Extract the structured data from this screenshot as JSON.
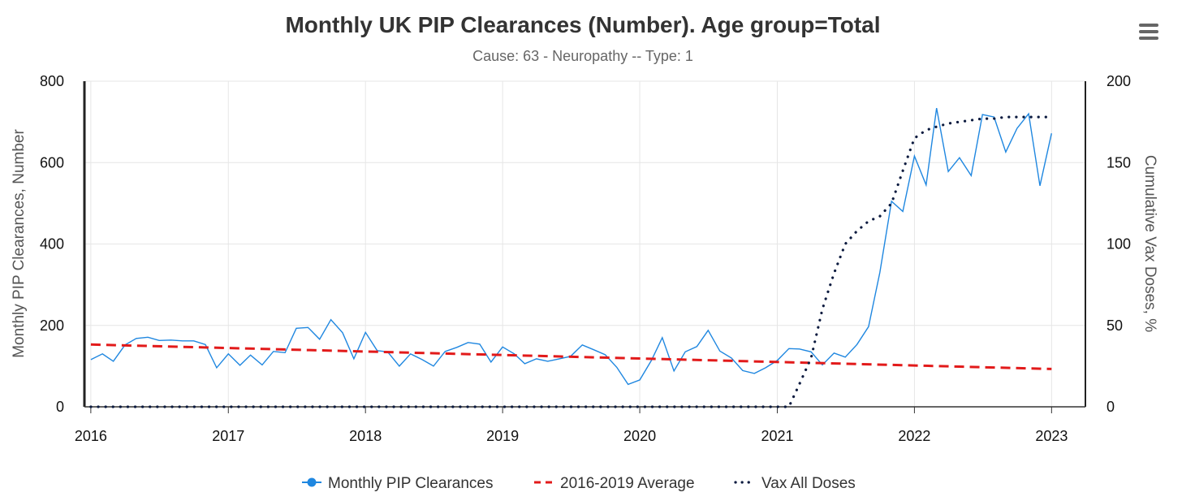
{
  "chart_data": {
    "type": "line",
    "title": "Monthly UK PIP Clearances (Number). Age group=Total",
    "subtitle": "Cause: 63 - Neuropathy -- Type: 1",
    "ylabel": "Monthly PIP Clearances, Number",
    "y2label": "Cumulative Vax Doses, %",
    "xlabel": "",
    "ylim": [
      0,
      800
    ],
    "y2lim": [
      0,
      200
    ],
    "xlim": [
      "2015-12-15",
      "2023-04-01"
    ],
    "x_ticks": [
      "2016",
      "2017",
      "2018",
      "2019",
      "2020",
      "2021",
      "2022",
      "2023"
    ],
    "y_ticks": [
      "0",
      "200",
      "400",
      "600",
      "800"
    ],
    "y2_ticks": [
      "0",
      "50",
      "100",
      "150",
      "200"
    ],
    "grid": true,
    "legend_position": "bottom-center",
    "series": [
      {
        "name": "Monthly PIP Clearances",
        "axis": "left",
        "style": "solid-markers",
        "color": "#1f87e0",
        "x": [
          "2016-01",
          "2016-02",
          "2016-03",
          "2016-04",
          "2016-05",
          "2016-06",
          "2016-07",
          "2016-08",
          "2016-09",
          "2016-10",
          "2016-11",
          "2016-12",
          "2017-01",
          "2017-02",
          "2017-03",
          "2017-04",
          "2017-05",
          "2017-06",
          "2017-07",
          "2017-08",
          "2017-09",
          "2017-10",
          "2017-11",
          "2017-12",
          "2018-01",
          "2018-02",
          "2018-03",
          "2018-04",
          "2018-05",
          "2018-06",
          "2018-07",
          "2018-08",
          "2018-09",
          "2018-10",
          "2018-11",
          "2018-12",
          "2019-01",
          "2019-02",
          "2019-03",
          "2019-04",
          "2019-05",
          "2019-06",
          "2019-07",
          "2019-08",
          "2019-09",
          "2019-10",
          "2019-11",
          "2019-12",
          "2020-01",
          "2020-02",
          "2020-03",
          "2020-04",
          "2020-05",
          "2020-06",
          "2020-07",
          "2020-08",
          "2020-09",
          "2020-10",
          "2020-11",
          "2020-12",
          "2021-01",
          "2021-02",
          "2021-03",
          "2021-04",
          "2021-05",
          "2021-06",
          "2021-07",
          "2021-08",
          "2021-09",
          "2021-10",
          "2021-11",
          "2021-12",
          "2022-01",
          "2022-02",
          "2022-03",
          "2022-04",
          "2022-05",
          "2022-06",
          "2022-07",
          "2022-08",
          "2022-09",
          "2022-10",
          "2022-11",
          "2022-12",
          "2023-01"
        ],
        "values": [
          116,
          130,
          112,
          152,
          168,
          171,
          163,
          164,
          162,
          162,
          153,
          96,
          130,
          102,
          127,
          103,
          136,
          133,
          193,
          195,
          166,
          214,
          182,
          118,
          183,
          138,
          135,
          100,
          130,
          116,
          100,
          136,
          146,
          158,
          154,
          110,
          147,
          130,
          106,
          118,
          112,
          118,
          124,
          152,
          140,
          128,
          97,
          55,
          66,
          114,
          170,
          88,
          135,
          148,
          188,
          137,
          120,
          89,
          82,
          96,
          114,
          143,
          142,
          135,
          103,
          132,
          122,
          153,
          197,
          330,
          505,
          480,
          616,
          545,
          734,
          578,
          612,
          568,
          718,
          712,
          626,
          684,
          720,
          543,
          672
        ]
      },
      {
        "name": "2016-2019 Average",
        "axis": "left",
        "style": "dashed",
        "color": "#e21a1a",
        "x": [
          "2016-01",
          "2023-01"
        ],
        "values": [
          153,
          93
        ]
      },
      {
        "name": "Vax All Doses",
        "axis": "right",
        "style": "dotted",
        "color": "#0b1a3f",
        "x": [
          "2016-01",
          "2020-12",
          "2021-01",
          "2021-02",
          "2021-03",
          "2021-04",
          "2021-05",
          "2021-06",
          "2021-07",
          "2021-08",
          "2021-09",
          "2021-10",
          "2021-11",
          "2021-12",
          "2022-01",
          "2022-02",
          "2022-03",
          "2022-04",
          "2022-05",
          "2022-06",
          "2022-07",
          "2022-08",
          "2022-09",
          "2022-10",
          "2022-11",
          "2022-12",
          "2023-01"
        ],
        "values": [
          0,
          0,
          0,
          0,
          14,
          30,
          60,
          82,
          100,
          108,
          114,
          117,
          125,
          145,
          165,
          170,
          172,
          174,
          175,
          176,
          177,
          177,
          178,
          178,
          178,
          178,
          178
        ]
      }
    ]
  }
}
